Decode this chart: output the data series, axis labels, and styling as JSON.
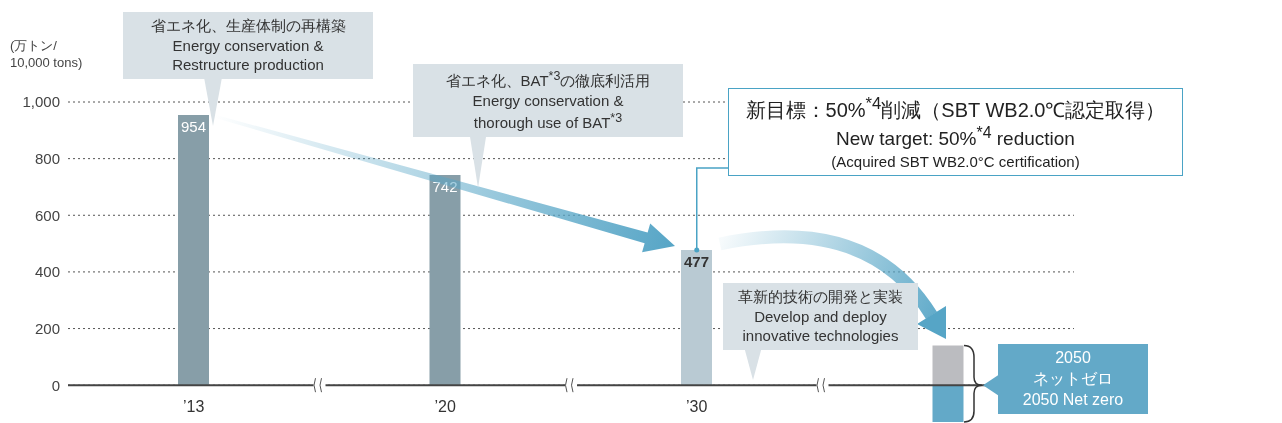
{
  "chart_data": {
    "type": "bar",
    "ylabel": "(万トン/\n10,000 tons)",
    "categories": [
      "’13",
      "’20",
      "’30",
      null
    ],
    "stacked": true,
    "series": [
      {
        "colors": [
          "#879ea8",
          "#879ea8",
          "#b9cad3",
          "#bbbcc0"
        ],
        "values": [
          954,
          742,
          477,
          140
        ],
        "value_labels": [
          "954",
          "742",
          "477",
          null
        ]
      },
      {
        "color": "#63a9c8",
        "values": [
          null,
          null,
          null,
          -130
        ]
      }
    ],
    "ylim": [
      -130,
      1000
    ],
    "yticks": [
      0,
      200,
      400,
      600,
      800,
      {
        "value": 1000,
        "label": "1,000"
      }
    ],
    "grid": "y",
    "annotations": [
      "省エネ化、生産体制の再構築\nEnergy conservation &\nRestructure production",
      "省エネ化、BAT$^{*3}$の徹底利活用\nEnergy conservation &\nthorough use of BAT$^{*3}$",
      {
        "text": "新目標：50%$^{*4}$削減（SBT WB2.0℃認定取得）\nNew target: 50%$^{*4}$ reduction\n(Acquired SBT WB2.0°C certification)",
        "x": "’30",
        "y": 477
      },
      "革新的技術の開発と実装\nDevelop and deploy\ninnovative technologies",
      "2050\nネットゼロ\n2050 Net zero"
    ]
  }
}
